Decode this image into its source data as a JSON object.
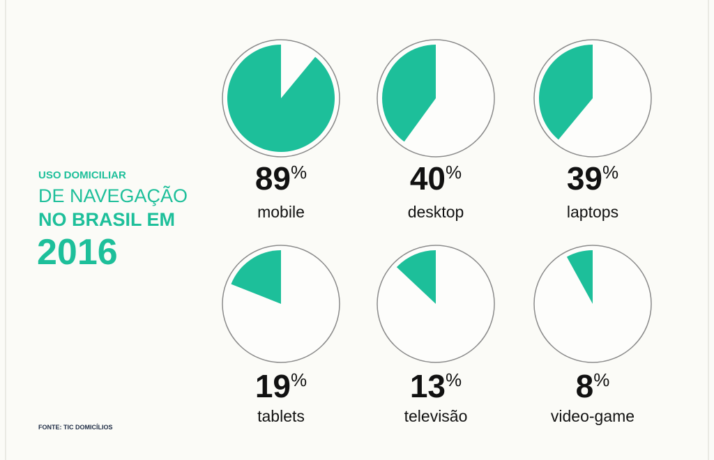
{
  "chart_data": {
    "type": "pie",
    "title_lines": [
      "USO DOMICILIAR",
      "DE NAVEGAÇÃO",
      "NO BRASIL EM",
      "2016"
    ],
    "source": "FONTE: TIC DOMICÍLIOS",
    "categories": [
      "mobile",
      "desktop",
      "laptops",
      "tablets",
      "televisão",
      "video-game"
    ],
    "values": [
      89,
      40,
      39,
      19,
      13,
      8
    ],
    "unit": "%",
    "color": "#1dbf9a",
    "outline_color": "#8a8a8a"
  }
}
